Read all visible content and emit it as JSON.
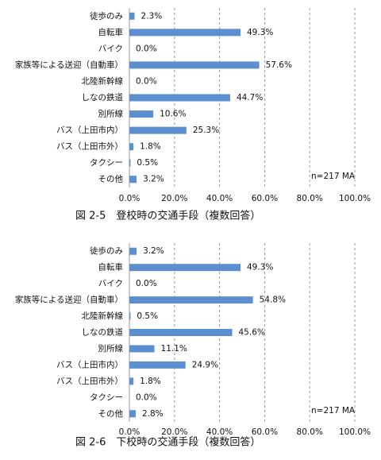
{
  "chart_data": [
    {
      "type": "bar",
      "orientation": "horizontal",
      "title": "図 2-5　登校時の交通手段（複数回答）",
      "categories": [
        "徒歩のみ",
        "自転車",
        "バイク",
        "家族等による送迎（自動車）",
        "北陸新幹線",
        "しなの鉄道",
        "別所線",
        "バス（上田市内）",
        "バス（上田市外）",
        "タクシー",
        "その他"
      ],
      "values": [
        2.3,
        49.3,
        0.0,
        57.6,
        0.0,
        44.7,
        10.6,
        25.3,
        1.8,
        0.5,
        3.2
      ],
      "value_labels": [
        "2.3%",
        "49.3%",
        "0.0%",
        "57.6%",
        "0.0%",
        "44.7%",
        "10.6%",
        "25.3%",
        "1.8%",
        "0.5%",
        "3.2%"
      ],
      "color": "#5b8fd0",
      "xlim": [
        0,
        100
      ],
      "xticks": [
        {
          "value": 0,
          "label": "0.0%"
        },
        {
          "value": 20,
          "label": "20.0%"
        },
        {
          "value": 40,
          "label": "40.0%"
        },
        {
          "value": 60,
          "label": "60.0%"
        },
        {
          "value": 80,
          "label": "80.0%"
        },
        {
          "value": 100,
          "label": "100.0%"
        }
      ],
      "grid": true,
      "annotation": "n=217 MA"
    },
    {
      "type": "bar",
      "orientation": "horizontal",
      "title": "図 2-6　下校時の交通手段（複数回答）",
      "categories": [
        "徒歩のみ",
        "自転車",
        "バイク",
        "家族等による送迎（自動車）",
        "北陸新幹線",
        "しなの鉄道",
        "別所線",
        "バス（上田市内）",
        "バス（上田市外）",
        "タクシー",
        "その他"
      ],
      "values": [
        3.2,
        49.3,
        0.0,
        54.8,
        0.5,
        45.6,
        11.1,
        24.9,
        1.8,
        0.0,
        2.8
      ],
      "value_labels": [
        "3.2%",
        "49.3%",
        "0.0%",
        "54.8%",
        "0.5%",
        "45.6%",
        "11.1%",
        "24.9%",
        "1.8%",
        "0.0%",
        "2.8%"
      ],
      "color": "#5b8fd0",
      "xlim": [
        0,
        100
      ],
      "xticks": [
        {
          "value": 0,
          "label": "0.0%"
        },
        {
          "value": 20,
          "label": "20.0%"
        },
        {
          "value": 40,
          "label": "40.0%"
        },
        {
          "value": 60,
          "label": "60.0%"
        },
        {
          "value": 80,
          "label": "80.0%"
        },
        {
          "value": 100,
          "label": "100.0%"
        }
      ],
      "grid": true,
      "annotation": "n=217 MA"
    }
  ]
}
